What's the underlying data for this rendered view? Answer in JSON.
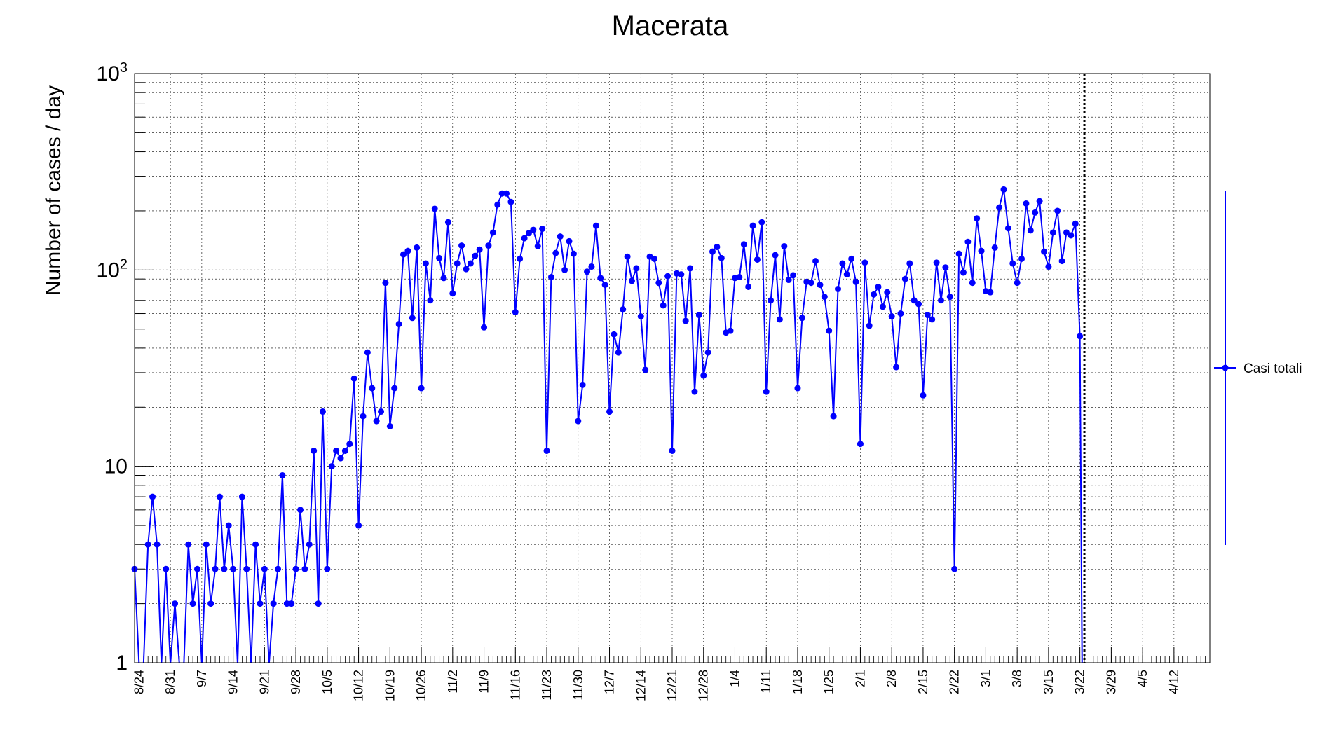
{
  "chart_data": {
    "type": "line",
    "title": "Macerata",
    "xlabel": "",
    "ylabel": "Number of cases / day",
    "y_scale": "log",
    "ylim": [
      1,
      1000
    ],
    "y_tick_labels": [
      "1",
      "10",
      "10²",
      "10³"
    ],
    "xlim": [
      "2020-08-23",
      "2021-04-20"
    ],
    "x_tick_labels": [
      "8/24",
      "8/31",
      "9/7",
      "9/14",
      "9/21",
      "9/28",
      "10/5",
      "10/12",
      "10/19",
      "10/26",
      "11/2",
      "11/9",
      "11/16",
      "11/23",
      "11/30",
      "12/7",
      "12/14",
      "12/21",
      "12/28",
      "1/4",
      "1/11",
      "1/18",
      "1/25",
      "2/1",
      "2/8",
      "2/15",
      "2/22",
      "3/1",
      "3/8",
      "3/15",
      "3/22",
      "3/29",
      "4/5",
      "4/12"
    ],
    "grid": true,
    "legend_position": "right",
    "marker_line_date": "2021-03-23",
    "colors": {
      "series": "#0000ff",
      "axes": "#000000"
    },
    "series": [
      {
        "name": "Casi totali",
        "start_date": "2020-08-23",
        "values": [
          3,
          0,
          0,
          4,
          7,
          4,
          0,
          3,
          0,
          2,
          0,
          0,
          4,
          2,
          3,
          0,
          4,
          2,
          3,
          7,
          3,
          5,
          3,
          0,
          7,
          3,
          0,
          4,
          2,
          3,
          0,
          2,
          3,
          9,
          2,
          2,
          3,
          6,
          3,
          4,
          12,
          2,
          19,
          3,
          10,
          12,
          11,
          12,
          13,
          28,
          5,
          18,
          38,
          25,
          17,
          19,
          86,
          16,
          25,
          53,
          120,
          125,
          57,
          130,
          25,
          108,
          70,
          205,
          115,
          91,
          175,
          76,
          108,
          133,
          101,
          108,
          118,
          127,
          51,
          133,
          155,
          215,
          245,
          245,
          222,
          61,
          114,
          145,
          154,
          160,
          132,
          162,
          12,
          92,
          122,
          148,
          100,
          140,
          121,
          17,
          26,
          98,
          104,
          168,
          91,
          84,
          19,
          47,
          38,
          63,
          117,
          88,
          102,
          58,
          31,
          117,
          114,
          86,
          66,
          93,
          12,
          96,
          95,
          55,
          102,
          24,
          59,
          29,
          38,
          124,
          131,
          115,
          48,
          49,
          91,
          92,
          135,
          82,
          168,
          113,
          175,
          24,
          70,
          119,
          56,
          132,
          89,
          94,
          25,
          57,
          87,
          86,
          111,
          84,
          73,
          49,
          18,
          80,
          108,
          95,
          114,
          87,
          13,
          109,
          52,
          75,
          82,
          65,
          77,
          58,
          32,
          60,
          90,
          108,
          70,
          67,
          23,
          59,
          56,
          109,
          70,
          103,
          73,
          3,
          121,
          97,
          139,
          86,
          183,
          125,
          78,
          77,
          130,
          208,
          257,
          163,
          108,
          86,
          114,
          218,
          159,
          196,
          224,
          124,
          104,
          155,
          200,
          111,
          155,
          150,
          172,
          46
        ]
      }
    ]
  }
}
